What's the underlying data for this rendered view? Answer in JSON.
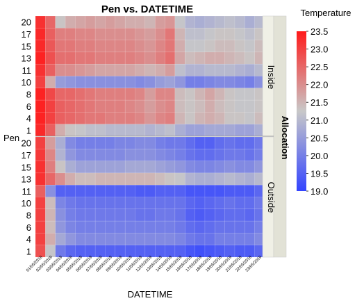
{
  "chart_data": {
    "type": "heatmap",
    "title": "Pen vs. DATETIME",
    "xlabel": "DATETIME",
    "ylabel": "Pen",
    "facet_label": "Allocation",
    "facets": [
      "Inside",
      "Outside"
    ],
    "pen_labels": [
      "20",
      "17",
      "15",
      "13",
      "11",
      "10",
      "8",
      "6",
      "4",
      "1"
    ],
    "dates": [
      "01/05/2019",
      "02/05/2019",
      "03/05/2019",
      "04/05/2019",
      "05/05/2019",
      "06/05/2019",
      "07/05/2019",
      "08/05/2019",
      "09/05/2019",
      "10/05/2019",
      "11/05/2019",
      "12/05/2019",
      "13/05/2019",
      "14/05/2019",
      "15/05/2019",
      "16/05/2019",
      "17/05/2019",
      "18/05/2019",
      "19/05/2019",
      "20/05/2019",
      "21/05/2019",
      "22/05/2019",
      "23/05/2019"
    ],
    "colorbar": {
      "title": "Temperature",
      "ticks": [
        "23.5",
        "23.0",
        "22.5",
        "22.0",
        "21.5",
        "21.0",
        "20.5",
        "20.0",
        "19.5",
        "19.0"
      ],
      "min": 19.0,
      "max": 23.5,
      "low_color": "#3344ff",
      "mid_color": "#c8c8c8",
      "high_color": "#ff1a1a"
    },
    "values": {
      "Inside": [
        [
          23.2,
          22.5,
          21.3,
          21.6,
          21.7,
          21.8,
          21.7,
          21.8,
          21.7,
          21.6,
          21.6,
          21.5,
          21.8,
          21.9,
          21.2,
          20.9,
          20.8,
          20.9,
          21.0,
          21.1,
          21.0,
          20.8,
          21.0
        ],
        [
          23.3,
          22.6,
          22.2,
          22.2,
          22.1,
          22.1,
          22.0,
          22.0,
          22.0,
          22.0,
          21.9,
          21.8,
          22.0,
          22.3,
          21.5,
          21.1,
          21.1,
          21.2,
          21.3,
          21.3,
          21.2,
          21.1,
          21.3
        ],
        [
          23.3,
          22.7,
          22.3,
          22.3,
          22.2,
          22.2,
          22.1,
          22.1,
          22.1,
          22.1,
          22.0,
          21.9,
          22.1,
          22.3,
          21.6,
          21.2,
          21.2,
          21.3,
          21.4,
          21.4,
          21.3,
          21.2,
          21.4
        ],
        [
          23.4,
          22.8,
          22.4,
          22.4,
          22.3,
          22.3,
          22.2,
          22.2,
          22.2,
          22.2,
          22.1,
          22.0,
          22.2,
          22.4,
          21.7,
          21.4,
          21.5,
          21.6,
          21.6,
          21.5,
          21.4,
          21.3,
          21.5
        ],
        [
          23.2,
          22.6,
          22.0,
          22.0,
          21.9,
          21.8,
          21.7,
          21.7,
          21.7,
          21.7,
          21.6,
          21.5,
          21.6,
          21.8,
          21.1,
          20.9,
          20.9,
          21.0,
          21.0,
          21.0,
          20.9,
          20.8,
          21.0
        ],
        [
          23.0,
          21.6,
          20.5,
          20.4,
          20.3,
          20.3,
          20.3,
          20.3,
          20.3,
          20.3,
          20.2,
          20.3,
          20.5,
          20.6,
          20.4,
          20.0,
          20.0,
          20.1,
          20.2,
          20.2,
          20.1,
          20.0,
          20.3
        ],
        [
          23.4,
          22.9,
          22.5,
          22.5,
          22.4,
          22.3,
          22.2,
          22.2,
          22.2,
          22.2,
          22.1,
          21.8,
          22.1,
          22.1,
          21.4,
          21.3,
          21.5,
          21.7,
          21.5,
          21.3,
          21.2,
          21.2,
          21.3
        ],
        [
          23.4,
          23.0,
          22.6,
          22.5,
          22.4,
          22.3,
          22.2,
          22.2,
          22.2,
          22.1,
          22.0,
          21.8,
          22.0,
          22.1,
          21.4,
          21.3,
          21.4,
          21.6,
          21.4,
          21.3,
          21.2,
          21.2,
          21.3
        ],
        [
          23.4,
          23.0,
          22.6,
          22.5,
          22.4,
          22.3,
          22.3,
          22.2,
          22.2,
          22.2,
          22.1,
          21.9,
          22.1,
          22.2,
          21.5,
          21.3,
          21.5,
          21.6,
          21.5,
          21.3,
          21.3,
          21.2,
          21.4
        ],
        [
          23.3,
          22.6,
          21.6,
          21.3,
          21.2,
          21.1,
          21.1,
          21.0,
          21.0,
          21.0,
          21.0,
          20.9,
          21.0,
          21.1,
          20.8,
          20.6,
          20.6,
          20.7,
          20.7,
          20.7,
          20.6,
          20.6,
          20.8
        ]
      ],
      "Outside": [
        [
          23.0,
          21.8,
          20.8,
          20.2,
          20.0,
          20.0,
          20.0,
          20.0,
          20.1,
          20.1,
          20.2,
          20.2,
          20.0,
          19.9,
          19.9,
          19.7,
          19.5,
          19.5,
          19.7,
          19.8,
          19.7,
          19.7,
          19.9
        ],
        [
          23.1,
          22.1,
          20.9,
          20.4,
          20.2,
          20.2,
          20.2,
          20.2,
          20.2,
          20.3,
          20.3,
          20.3,
          20.2,
          20.1,
          20.0,
          19.8,
          19.7,
          19.7,
          19.8,
          19.9,
          19.9,
          19.8,
          20.0
        ],
        [
          23.2,
          22.2,
          21.3,
          20.8,
          20.6,
          20.6,
          20.6,
          20.6,
          20.6,
          20.7,
          20.7,
          20.7,
          20.6,
          20.5,
          20.4,
          20.2,
          20.1,
          20.1,
          20.2,
          20.3,
          20.2,
          20.2,
          20.4
        ],
        [
          23.2,
          22.5,
          22.0,
          21.6,
          21.4,
          21.4,
          21.5,
          21.5,
          21.5,
          21.5,
          21.5,
          21.5,
          21.4,
          21.3,
          21.2,
          20.9,
          20.8,
          20.8,
          20.9,
          21.0,
          20.9,
          20.8,
          21.0
        ],
        [
          22.6,
          20.3,
          19.5,
          19.5,
          19.5,
          19.5,
          19.5,
          19.5,
          19.5,
          19.5,
          19.4,
          19.4,
          19.5,
          19.5,
          19.5,
          19.3,
          19.3,
          19.3,
          19.3,
          19.4,
          19.4,
          19.4,
          19.6
        ],
        [
          23.0,
          21.4,
          20.1,
          19.9,
          19.8,
          19.8,
          19.8,
          19.8,
          19.8,
          19.8,
          19.8,
          19.8,
          19.8,
          19.8,
          19.8,
          19.6,
          19.5,
          19.6,
          19.7,
          19.8,
          19.7,
          19.7,
          19.9
        ],
        [
          23.0,
          21.5,
          20.3,
          20.0,
          19.9,
          19.9,
          19.9,
          19.9,
          19.9,
          19.9,
          19.8,
          19.8,
          19.9,
          19.9,
          19.8,
          19.5,
          19.4,
          19.5,
          19.6,
          19.7,
          19.7,
          19.6,
          19.8
        ],
        [
          23.0,
          21.4,
          20.4,
          20.1,
          20.0,
          20.0,
          20.0,
          20.0,
          20.0,
          20.0,
          20.0,
          20.0,
          20.0,
          20.0,
          19.9,
          19.7,
          19.6,
          19.7,
          19.8,
          19.8,
          19.8,
          19.8,
          20.0
        ],
        [
          23.0,
          21.6,
          20.7,
          20.4,
          20.2,
          20.2,
          20.2,
          20.2,
          20.2,
          20.2,
          20.2,
          20.2,
          20.2,
          20.2,
          20.1,
          19.9,
          19.8,
          19.8,
          20.0,
          20.0,
          20.0,
          20.0,
          20.2
        ],
        [
          22.8,
          21.2,
          19.9,
          19.6,
          19.5,
          19.5,
          19.5,
          19.5,
          19.5,
          19.5,
          19.5,
          19.5,
          19.5,
          19.5,
          19.5,
          19.3,
          19.2,
          19.3,
          19.4,
          19.5,
          19.4,
          19.4,
          19.6
        ]
      ]
    }
  }
}
